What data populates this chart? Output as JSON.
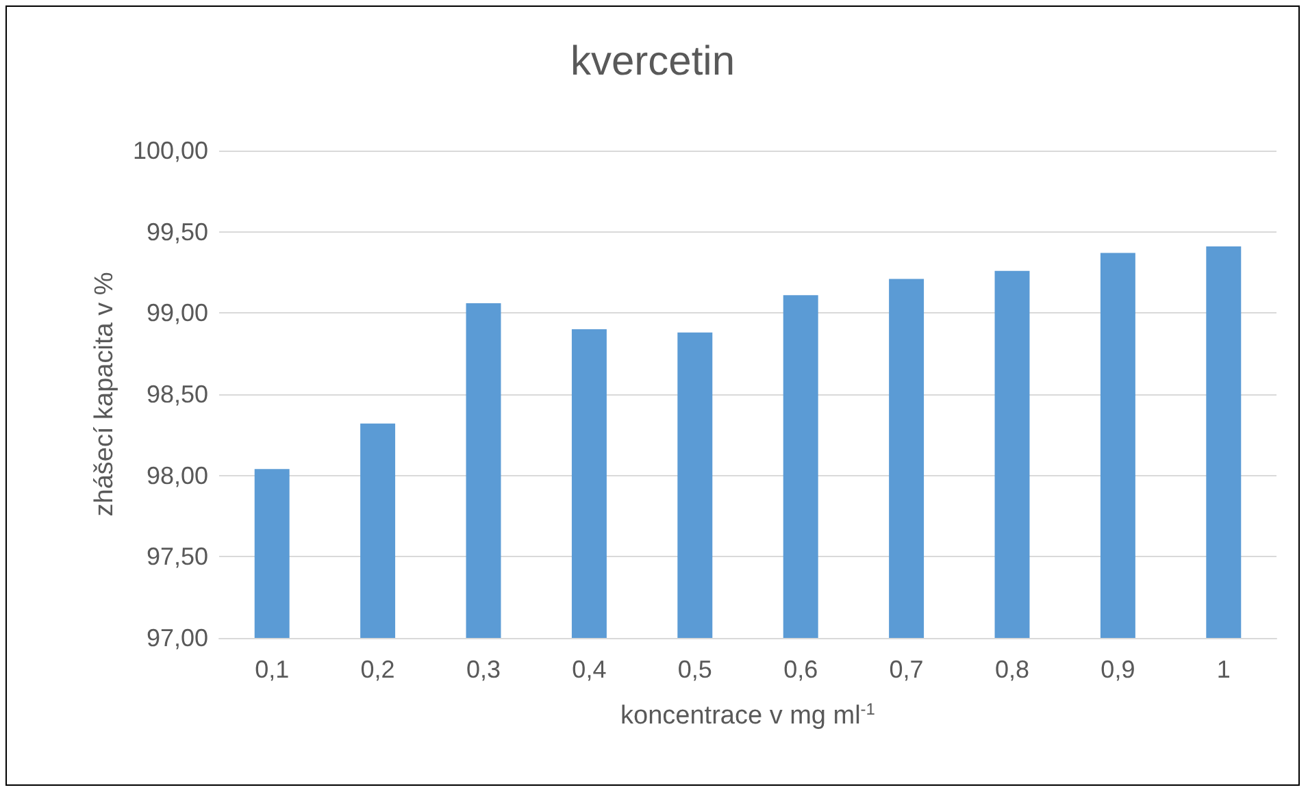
{
  "chart_data": {
    "type": "bar",
    "title": "kvercetin",
    "xlabel": "koncentrace v mg ml$^{-1}$",
    "ylabel": "zhášecí kapacita v %",
    "categories": [
      "0,1",
      "0,2",
      "0,3",
      "0,4",
      "0,5",
      "0,6",
      "0,7",
      "0,8",
      "0,9",
      "1"
    ],
    "values": [
      98.04,
      98.32,
      99.06,
      98.9,
      98.88,
      99.11,
      99.21,
      99.26,
      99.37,
      99.41
    ],
    "color": "#5b9bd5",
    "ylim": [
      97,
      100
    ],
    "yticks": [
      {
        "value": 97,
        "label": "97,00"
      },
      {
        "value": 97.5,
        "label": "97,50"
      },
      {
        "value": 98,
        "label": "98,00"
      },
      {
        "value": 98.5,
        "label": "98,50"
      },
      {
        "value": 99,
        "label": "99,00"
      },
      {
        "value": 99.5,
        "label": "99,50"
      },
      {
        "value": 100,
        "label": "100,00"
      }
    ],
    "grid": "y"
  }
}
